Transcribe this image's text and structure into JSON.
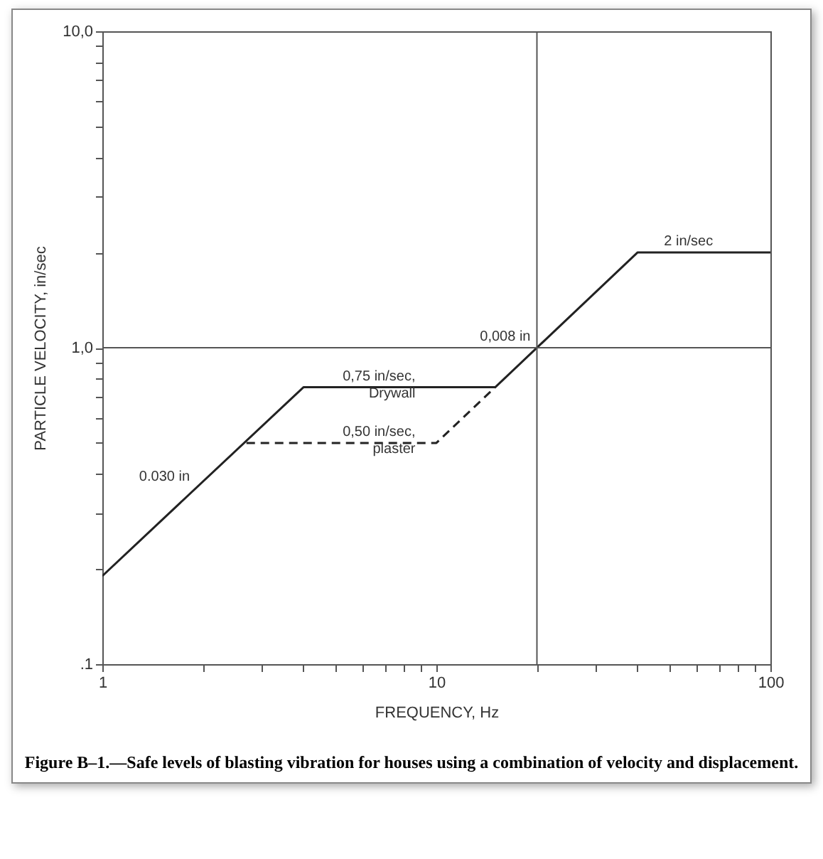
{
  "chart_data": {
    "type": "line",
    "xlabel": "FREQUENCY, Hz",
    "ylabel": "PARTICLE VELOCITY, in/sec",
    "log": "xy",
    "grid": false,
    "xlim": [
      1,
      100
    ],
    "ylim": [
      0.1,
      10
    ],
    "xticks": [
      1,
      {
        "value": 2,
        "label": null
      },
      {
        "value": 3,
        "label": null
      },
      {
        "value": 4,
        "label": null
      },
      {
        "value": 5,
        "label": null
      },
      {
        "value": 6,
        "label": null
      },
      {
        "value": 7,
        "label": null
      },
      {
        "value": 8,
        "label": null
      },
      {
        "value": 9,
        "label": null
      },
      10,
      {
        "value": 20,
        "label": null
      },
      {
        "value": 30,
        "label": null
      },
      {
        "value": 40,
        "label": null
      },
      {
        "value": 50,
        "label": null
      },
      {
        "value": 60,
        "label": null
      },
      {
        "value": 70,
        "label": null
      },
      {
        "value": 80,
        "label": null
      },
      {
        "value": 90,
        "label": null
      },
      100
    ],
    "yticks": [
      {
        "value": 0.1,
        "label": ".1"
      },
      {
        "value": 0.2,
        "label": null
      },
      {
        "value": 0.3,
        "label": null
      },
      {
        "value": 0.4,
        "label": null
      },
      {
        "value": 0.5,
        "label": null
      },
      {
        "value": 0.6,
        "label": null
      },
      {
        "value": 0.7,
        "label": null
      },
      {
        "value": 0.8,
        "label": null
      },
      {
        "value": 0.9,
        "label": null
      },
      {
        "value": 1,
        "label": "1,0"
      },
      {
        "value": 2,
        "label": null
      },
      {
        "value": 3,
        "label": null
      },
      {
        "value": 4,
        "label": null
      },
      {
        "value": 5,
        "label": null
      },
      {
        "value": 6,
        "label": null
      },
      {
        "value": 7,
        "label": null
      },
      {
        "value": 8,
        "label": null
      },
      {
        "value": 9,
        "label": null
      },
      {
        "value": 10,
        "label": "10,0"
      }
    ],
    "marker": "none",
    "series": [
      {
        "color": "#222222",
        "line_style": "solid",
        "x": [
          1,
          4,
          15,
          40,
          100
        ],
        "values": [
          0.19,
          0.75,
          0.75,
          2,
          2
        ]
      },
      {
        "color": "#222222",
        "line_style": "dashed",
        "x": [
          2.7,
          10,
          15
        ],
        "values": [
          0.5,
          0.5,
          0.75
        ]
      }
    ],
    "ref_lines": [
      {
        "axis": "x",
        "value": 20,
        "label": null,
        "color": "#555555"
      },
      {
        "axis": "y",
        "value": 1,
        "label": null,
        "color": "#555555"
      }
    ],
    "annotations": [
      {
        "text": "0.030 in",
        "x": 1.9,
        "y": 0.36
      },
      {
        "text": "0,75 in/sec,\nDrywall",
        "x": 9,
        "y": 0.75
      },
      {
        "text": "0,50 in/sec,\nplaster",
        "x": 9,
        "y": 0.5
      },
      {
        "text": "0,008 in",
        "x": 19.9,
        "y": 1
      },
      {
        "text": "2 in/sec",
        "x": 70,
        "y": 2
      },
      "Figure B–1.—Safe levels of blasting vibration for houses using a combination of velocity and displacement."
    ]
  }
}
